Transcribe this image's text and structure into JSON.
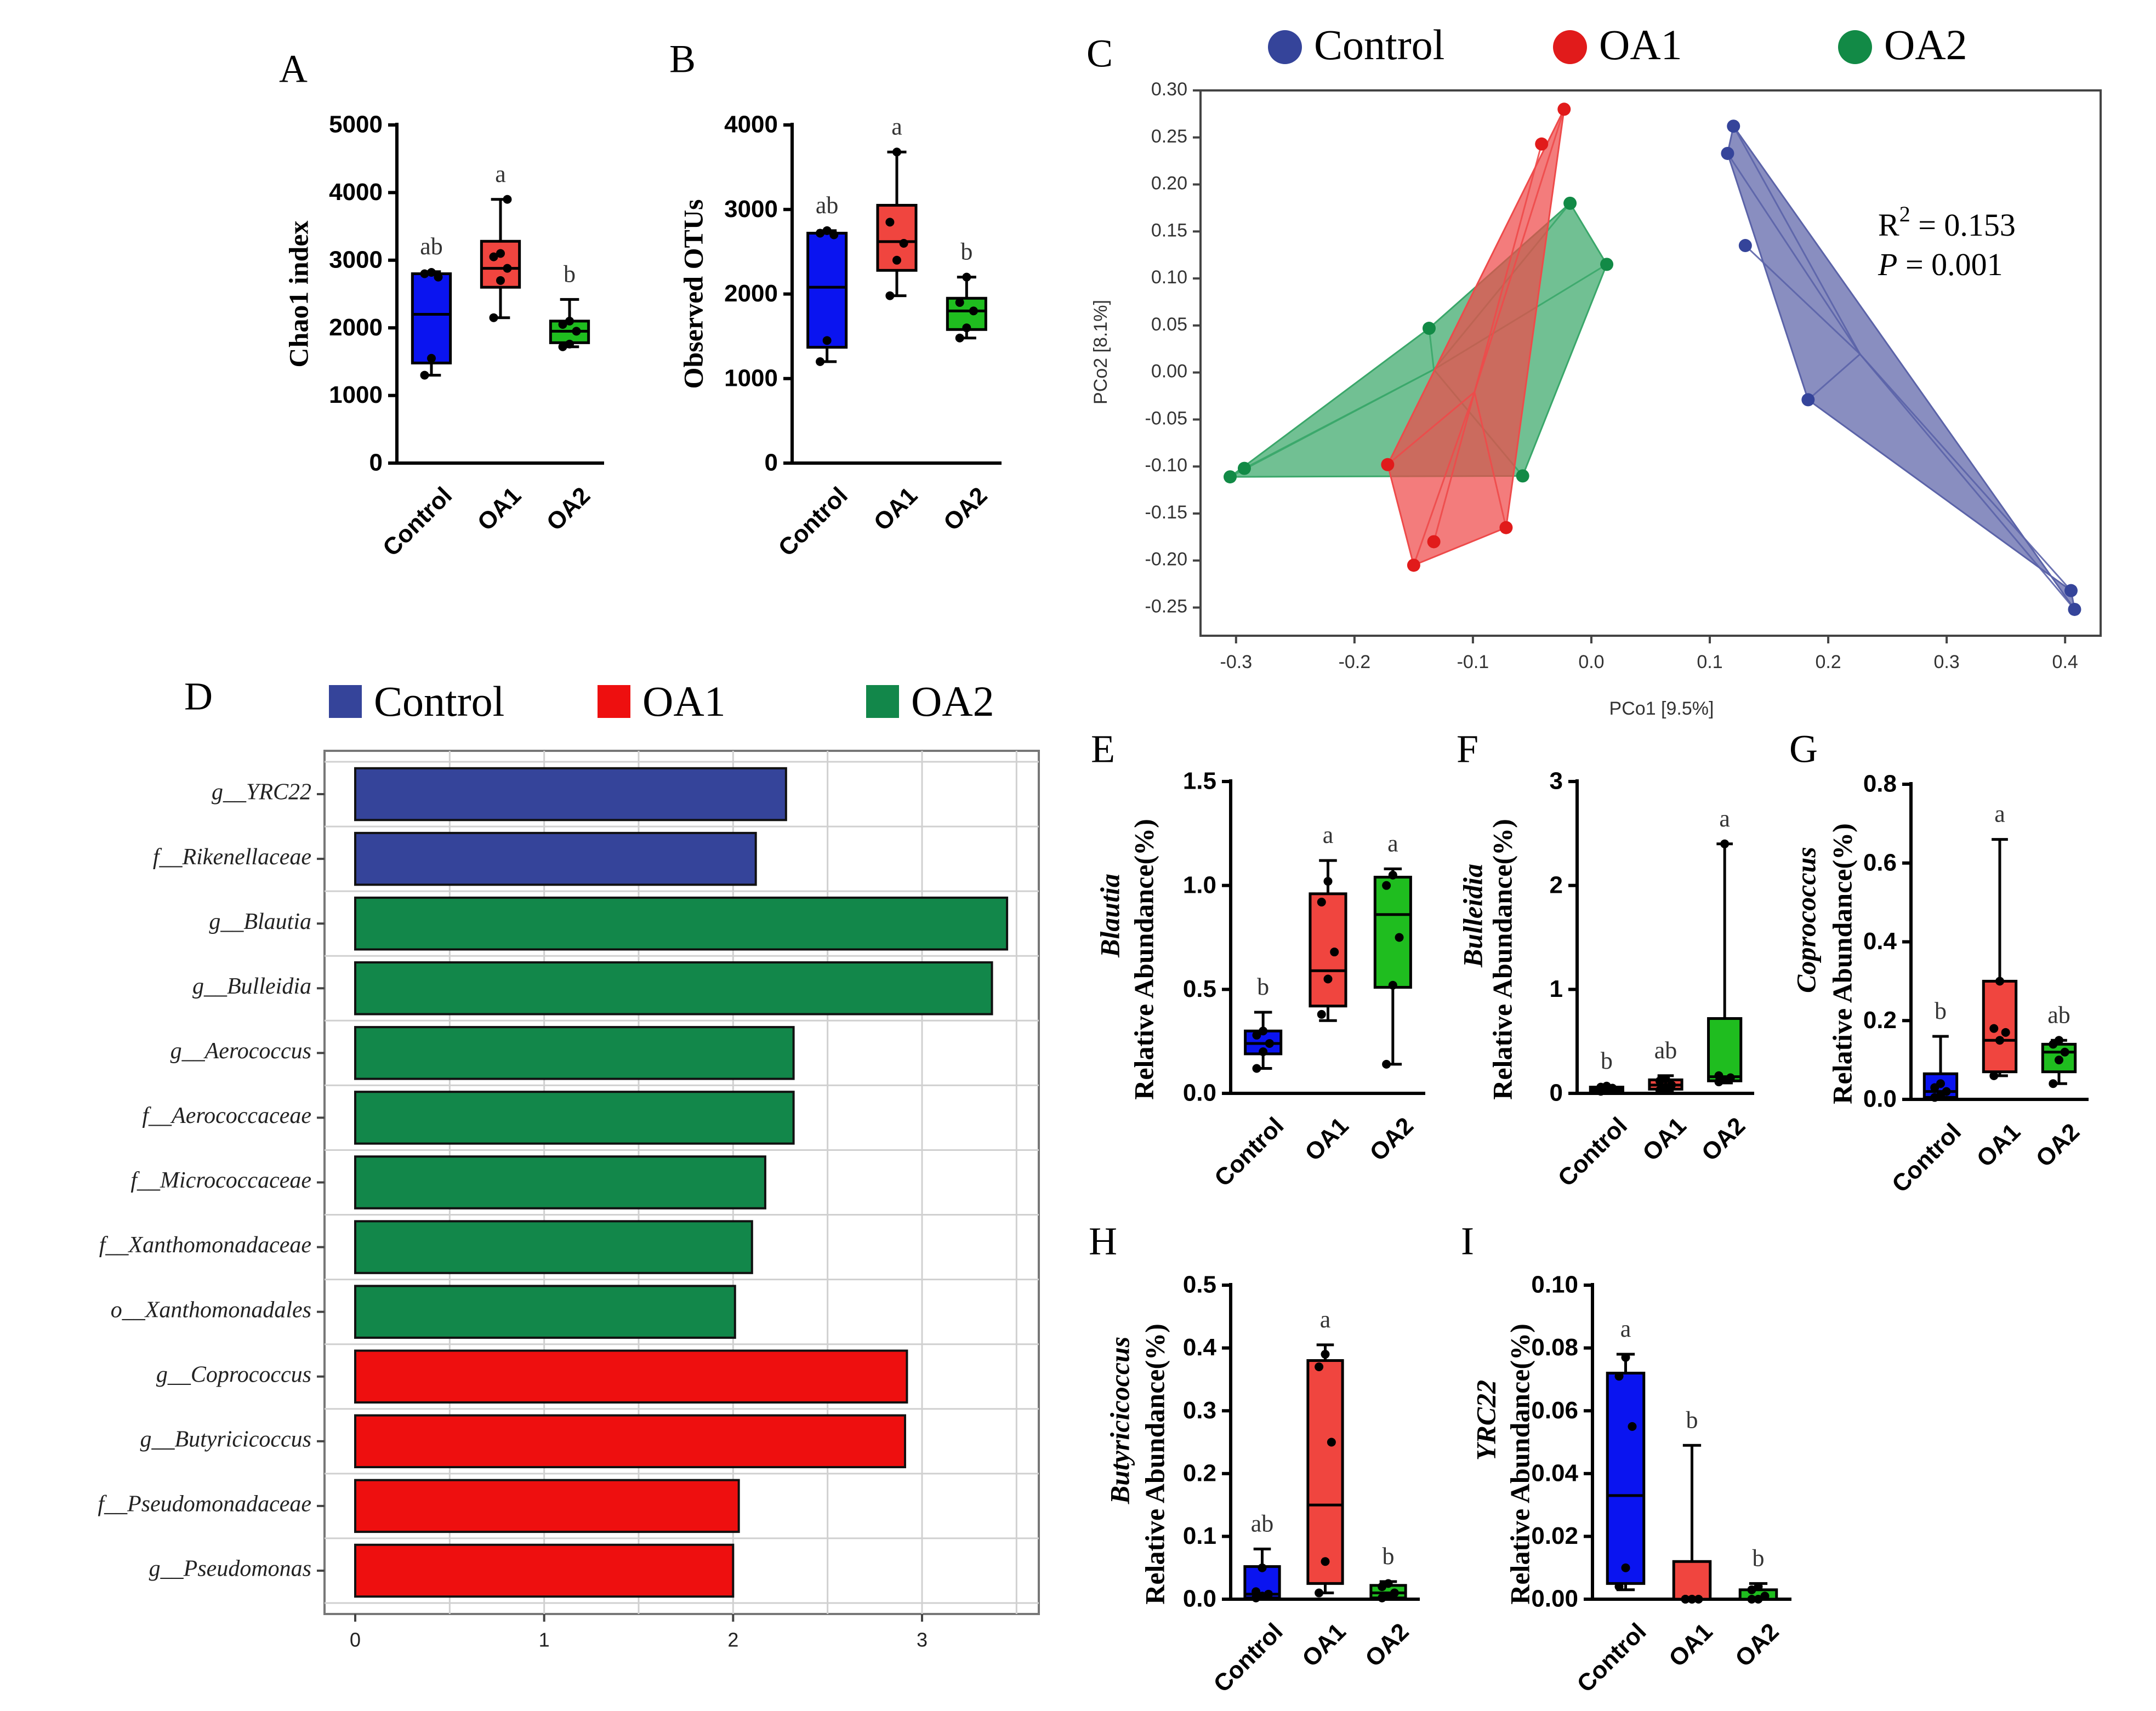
{
  "groups": [
    "Control",
    "OA1",
    "OA2"
  ],
  "colors": {
    "Control": "#0a14f0",
    "OA1": "#f0453f",
    "OA2": "#1fbd1f",
    "ControlLegend": "#35449a",
    "OA1Legend": "#e11b1b",
    "OA2Legend": "#128a46",
    "ControlPoly": "#5b63a8",
    "OA1Poly": "#ee4a4a",
    "OA2Poly": "#3aa76a",
    "ControlBar": "#35449a",
    "OA1Bar": "#ee0f0f",
    "OA2Bar": "#12874a"
  },
  "chart_data": [
    {
      "id": "A",
      "panel_letter": "A",
      "type": "box",
      "ylabel": "Chao1 index",
      "ylim": [
        0,
        5000
      ],
      "yticks": [
        "0",
        "1000",
        "2000",
        "3000",
        "4000",
        "5000"
      ],
      "categories": [
        "Control",
        "OA1",
        "OA2"
      ],
      "boxes": [
        {
          "group": "Control",
          "min": 1300,
          "q1": 1480,
          "median": 2200,
          "q3": 2800,
          "max": 2830,
          "letter": "ab",
          "points": [
            1300,
            1550,
            2750,
            2800,
            2820
          ]
        },
        {
          "group": "OA1",
          "min": 2150,
          "q1": 2600,
          "median": 2880,
          "q3": 3280,
          "max": 3900,
          "letter": "a",
          "points": [
            2150,
            2700,
            2880,
            3050,
            3100,
            3900
          ]
        },
        {
          "group": "OA2",
          "min": 1720,
          "q1": 1780,
          "median": 1950,
          "q3": 2100,
          "max": 2420,
          "letter": "b",
          "points": [
            1720,
            1760,
            1950,
            2050,
            2100
          ]
        }
      ]
    },
    {
      "id": "B",
      "panel_letter": "B",
      "type": "box",
      "ylabel": "Observed OTUs",
      "ylim": [
        0,
        4000
      ],
      "yticks": [
        "0",
        "1000",
        "2000",
        "3000",
        "4000"
      ],
      "categories": [
        "Control",
        "OA1",
        "OA2"
      ],
      "boxes": [
        {
          "group": "Control",
          "min": 1200,
          "q1": 1370,
          "median": 2080,
          "q3": 2720,
          "max": 2750,
          "letter": "ab",
          "points": [
            1200,
            1450,
            2700,
            2720,
            2750
          ]
        },
        {
          "group": "OA1",
          "min": 1980,
          "q1": 2280,
          "median": 2620,
          "q3": 3050,
          "max": 3680,
          "letter": "a",
          "points": [
            1980,
            2400,
            2600,
            2850,
            3680
          ]
        },
        {
          "group": "OA2",
          "min": 1480,
          "q1": 1580,
          "median": 1800,
          "q3": 1950,
          "max": 2200,
          "letter": "b",
          "points": [
            1480,
            1600,
            1800,
            1900,
            2200
          ]
        }
      ]
    },
    {
      "id": "C",
      "panel_letter": "C",
      "type": "scatter",
      "xlabel": "PCo1 [9.5%]",
      "ylabel": "PCo2 [8.1%]",
      "xlim": [
        -0.33,
        0.43
      ],
      "ylim": [
        -0.28,
        0.3
      ],
      "xticks": [
        -0.3,
        -0.2,
        -0.1,
        0.0,
        0.1,
        0.2,
        0.3,
        0.4
      ],
      "xtick_labels": [
        "-0.3",
        "-0.2",
        "-0.1",
        "0.0",
        "0.1",
        "0.2",
        "0.3",
        "0.4"
      ],
      "yticks": [
        -0.25,
        -0.2,
        -0.15,
        -0.1,
        -0.05,
        0.0,
        0.05,
        0.1,
        0.15,
        0.2,
        0.25,
        0.3
      ],
      "ytick_labels": [
        "-0.25",
        "-0.20",
        "-0.15",
        "-0.10",
        "-0.05",
        "0.00",
        "0.05",
        "0.10",
        "0.15",
        "0.20",
        "0.25",
        "0.30"
      ],
      "r2_prefix": "R",
      "r2_sup": "2",
      "r2_value": " = 0.153",
      "p_prefix": "P",
      "p_value": " = 0.001",
      "series": [
        {
          "name": "OA2",
          "points": [
            [
              -0.305,
              -0.111
            ],
            [
              -0.293,
              -0.102
            ],
            [
              -0.137,
              0.047
            ],
            [
              -0.058,
              -0.11
            ],
            [
              -0.018,
              0.18
            ],
            [
              0.013,
              0.115
            ]
          ],
          "hull": [
            [
              -0.305,
              -0.111
            ],
            [
              -0.137,
              0.047
            ],
            [
              -0.018,
              0.18
            ],
            [
              0.013,
              0.115
            ],
            [
              -0.058,
              -0.11
            ]
          ]
        },
        {
          "name": "OA1",
          "points": [
            [
              -0.172,
              -0.098
            ],
            [
              -0.15,
              -0.205
            ],
            [
              -0.133,
              -0.18
            ],
            [
              -0.072,
              -0.165
            ],
            [
              -0.042,
              0.243
            ],
            [
              -0.023,
              0.28
            ]
          ],
          "hull": [
            [
              -0.172,
              -0.098
            ],
            [
              -0.023,
              0.28
            ],
            [
              -0.072,
              -0.165
            ],
            [
              -0.15,
              -0.205
            ]
          ]
        },
        {
          "name": "Control",
          "points": [
            [
              0.115,
              0.233
            ],
            [
              0.12,
              0.262
            ],
            [
              0.13,
              0.135
            ],
            [
              0.183,
              -0.029
            ],
            [
              0.405,
              -0.232
            ],
            [
              0.408,
              -0.252
            ]
          ],
          "hull": [
            [
              0.115,
              0.233
            ],
            [
              0.12,
              0.262
            ],
            [
              0.408,
              -0.252
            ],
            [
              0.405,
              -0.232
            ],
            [
              0.183,
              -0.029
            ]
          ]
        }
      ]
    },
    {
      "id": "D",
      "panel_letter": "D",
      "type": "bar",
      "orientation": "horizontal",
      "xlim": [
        0,
        3.6
      ],
      "xticks": [
        "0",
        "1",
        "2",
        "3"
      ],
      "categories": [
        "g__YRC22",
        "f__Rikenellaceae",
        "g__Blautia",
        "g__Bulleidia",
        "g__Aerococcus",
        "f__Aerococcaceae",
        "f__Micrococcaceae",
        "f__Xanthomonadaceae",
        "o__Xanthomonadales",
        "g__Coprococcus",
        "g__Butyricicoccus",
        "f__Pseudomonadaceae",
        "g__Pseudomonas"
      ],
      "values": [
        2.28,
        2.12,
        3.45,
        3.37,
        2.32,
        2.32,
        2.17,
        2.1,
        2.01,
        2.92,
        2.91,
        2.03,
        2.0
      ],
      "groups": [
        "Control",
        "Control",
        "OA2",
        "OA2",
        "OA2",
        "OA2",
        "OA2",
        "OA2",
        "OA2",
        "OA1",
        "OA1",
        "OA1",
        "OA1"
      ]
    },
    {
      "id": "E",
      "panel_letter": "E",
      "type": "box",
      "genus": "Blautia",
      "ylabel": "Relative Abundance(%)",
      "ylim": [
        0,
        1.5
      ],
      "yticks": [
        "0.0",
        "0.5",
        "1.0",
        "1.5"
      ],
      "categories": [
        "Control",
        "OA1",
        "OA2"
      ],
      "boxes": [
        {
          "group": "Control",
          "min": 0.12,
          "q1": 0.19,
          "median": 0.24,
          "q3": 0.3,
          "max": 0.39,
          "letter": "b",
          "points": [
            0.12,
            0.2,
            0.24,
            0.28,
            0.3
          ]
        },
        {
          "group": "OA1",
          "min": 0.35,
          "q1": 0.42,
          "median": 0.59,
          "q3": 0.96,
          "max": 1.12,
          "letter": "a",
          "points": [
            0.38,
            0.55,
            0.68,
            0.92,
            1.02
          ]
        },
        {
          "group": "OA2",
          "min": 0.14,
          "q1": 0.51,
          "median": 0.86,
          "q3": 1.04,
          "max": 1.08,
          "letter": "a",
          "points": [
            0.14,
            0.52,
            0.75,
            1.0,
            1.05
          ]
        }
      ]
    },
    {
      "id": "F",
      "panel_letter": "F",
      "type": "box",
      "genus": "Bulleidia",
      "ylabel": "Relative Abundance(%)",
      "ylim": [
        0,
        3
      ],
      "yticks": [
        "0",
        "1",
        "2",
        "3"
      ],
      "categories": [
        "Control",
        "OA1",
        "OA2"
      ],
      "boxes": [
        {
          "group": "Control",
          "min": 0.01,
          "q1": 0.02,
          "median": 0.04,
          "q3": 0.06,
          "max": 0.07,
          "letter": "b",
          "points": [
            0.02,
            0.03,
            0.05,
            0.06,
            0.07
          ]
        },
        {
          "group": "OA1",
          "min": 0.02,
          "q1": 0.04,
          "median": 0.08,
          "q3": 0.13,
          "max": 0.17,
          "letter": "ab",
          "points": [
            0.03,
            0.06,
            0.08,
            0.12,
            0.14
          ]
        },
        {
          "group": "OA2",
          "min": 0.1,
          "q1": 0.12,
          "median": 0.16,
          "q3": 0.72,
          "max": 2.4,
          "letter": "a",
          "points": [
            0.11,
            0.13,
            0.15,
            0.17,
            2.4
          ]
        }
      ]
    },
    {
      "id": "G",
      "panel_letter": "G",
      "type": "box",
      "genus": "Coprococcus",
      "ylabel": "Relative Abundance(%)",
      "ylim": [
        0,
        0.8
      ],
      "yticks": [
        "0.0",
        "0.2",
        "0.4",
        "0.6",
        "0.8"
      ],
      "categories": [
        "Control",
        "OA1",
        "OA2"
      ],
      "boxes": [
        {
          "group": "Control",
          "min": 0.0,
          "q1": 0.005,
          "median": 0.02,
          "q3": 0.065,
          "max": 0.16,
          "letter": "b",
          "points": [
            0.005,
            0.01,
            0.02,
            0.03,
            0.04
          ]
        },
        {
          "group": "OA1",
          "min": 0.06,
          "q1": 0.07,
          "median": 0.15,
          "q3": 0.3,
          "max": 0.66,
          "letter": "a",
          "points": [
            0.06,
            0.15,
            0.17,
            0.18,
            0.3
          ]
        },
        {
          "group": "OA2",
          "min": 0.04,
          "q1": 0.07,
          "median": 0.12,
          "q3": 0.14,
          "max": 0.15,
          "letter": "ab",
          "points": [
            0.04,
            0.1,
            0.12,
            0.14,
            0.15
          ]
        }
      ]
    },
    {
      "id": "H",
      "panel_letter": "H",
      "type": "box",
      "genus": "Butyricicoccus",
      "ylabel": "Relative Abundance(%)",
      "ylim": [
        0,
        0.5
      ],
      "yticks": [
        "0.0",
        "0.1",
        "0.2",
        "0.3",
        "0.4",
        "0.5"
      ],
      "categories": [
        "Control",
        "OA1",
        "OA2"
      ],
      "boxes": [
        {
          "group": "Control",
          "min": 0.0,
          "q1": 0.002,
          "median": 0.008,
          "q3": 0.052,
          "max": 0.08,
          "letter": "ab",
          "points": [
            0.002,
            0.005,
            0.008,
            0.012,
            0.05
          ]
        },
        {
          "group": "OA1",
          "min": 0.01,
          "q1": 0.025,
          "median": 0.15,
          "q3": 0.38,
          "max": 0.405,
          "letter": "a",
          "points": [
            0.01,
            0.06,
            0.25,
            0.37,
            0.39
          ]
        },
        {
          "group": "OA2",
          "min": 0.0,
          "q1": 0.002,
          "median": 0.01,
          "q3": 0.022,
          "max": 0.028,
          "letter": "b",
          "points": [
            0.002,
            0.005,
            0.01,
            0.02,
            0.025
          ]
        }
      ]
    },
    {
      "id": "I",
      "panel_letter": "I",
      "type": "box",
      "genus": "YRC22",
      "ylabel": "Relative Abundance(%)",
      "ylim": [
        0,
        0.1
      ],
      "yticks": [
        "0.00",
        "0.02",
        "0.04",
        "0.06",
        "0.08",
        "0.10"
      ],
      "categories": [
        "Control",
        "OA1",
        "OA2"
      ],
      "boxes": [
        {
          "group": "Control",
          "min": 0.003,
          "q1": 0.005,
          "median": 0.033,
          "q3": 0.072,
          "max": 0.078,
          "letter": "a",
          "points": [
            0.004,
            0.01,
            0.055,
            0.071,
            0.077
          ]
        },
        {
          "group": "OA1",
          "min": 0.0,
          "q1": 0.0,
          "median": 0.0,
          "q3": 0.012,
          "max": 0.049,
          "letter": "b",
          "points": [
            0.0,
            0.0,
            0.0,
            0.0,
            0.0
          ]
        },
        {
          "group": "OA2",
          "min": 0.0,
          "q1": 0.0,
          "median": 0.0,
          "q3": 0.003,
          "max": 0.005,
          "letter": "b",
          "points": [
            0.0,
            0.0,
            0.001,
            0.003,
            0.004
          ]
        }
      ]
    }
  ]
}
